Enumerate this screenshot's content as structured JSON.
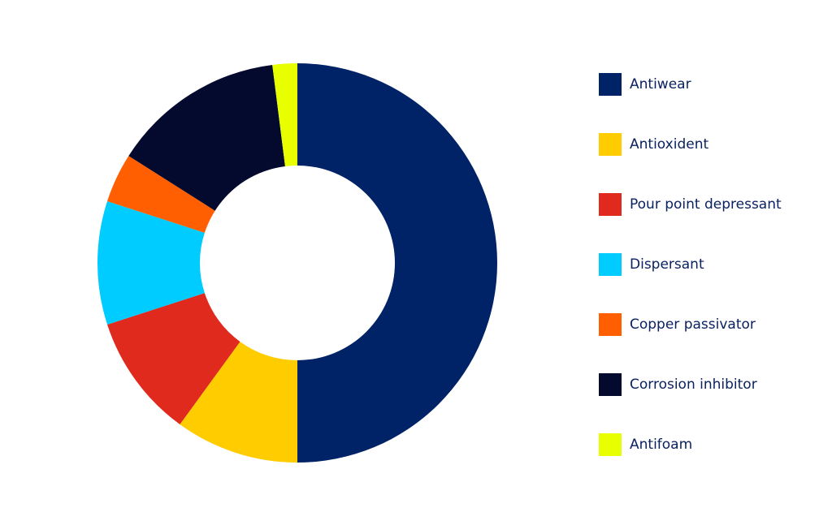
{
  "chart_data": {
    "type": "donut",
    "categories": [
      "Antiwear",
      "Antioxident",
      "Pour point depressant",
      "Dispersant",
      "Copper passivator",
      "Corrosion inhibitor",
      "Antifoam"
    ],
    "values": [
      50,
      10,
      10,
      10,
      4,
      14,
      2
    ],
    "colors": [
      "#002266",
      "#ffcc00",
      "#e02a1e",
      "#00ccff",
      "#ff5f00",
      "#040a2e",
      "#e8ff00"
    ],
    "legend": "right"
  }
}
